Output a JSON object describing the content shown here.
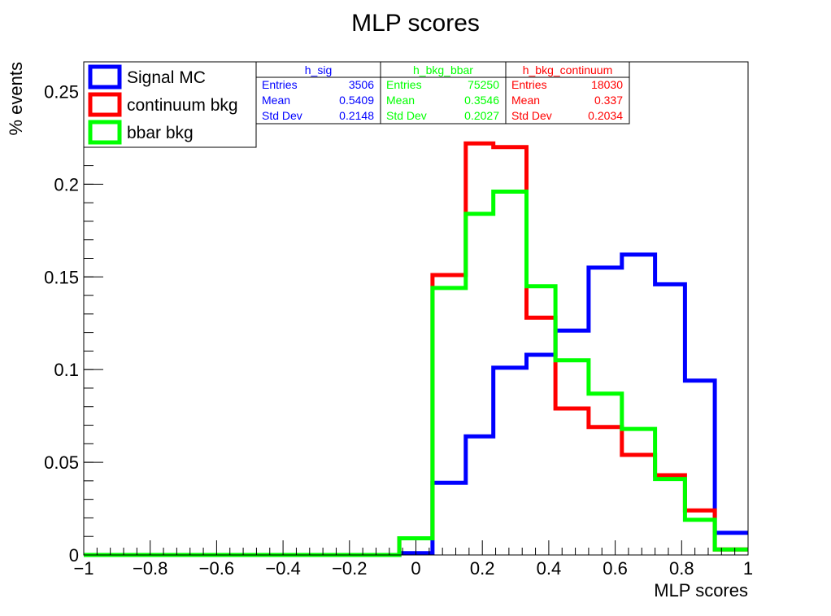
{
  "chart_data": {
    "type": "histogram",
    "title": "MLP scores",
    "xlabel": "MLP scores",
    "ylabel": "% events",
    "xlim": [
      -1,
      1
    ],
    "ylim": [
      0,
      0.266
    ],
    "x_ticks": [
      -1,
      -0.8,
      -0.6,
      -0.4,
      -0.2,
      0,
      0.2,
      0.4,
      0.6,
      0.8,
      1
    ],
    "x_tick_labels": [
      "−1",
      "−0.8",
      "−0.6",
      "−0.4",
      "−0.2",
      "0",
      "0.2",
      "0.4",
      "0.6",
      "0.8",
      "1"
    ],
    "y_ticks": [
      0,
      0.05,
      0.1,
      0.15,
      0.2,
      0.25
    ],
    "y_tick_labels": [
      "0",
      "0.05",
      "0.1",
      "0.15",
      "0.2",
      "0.25"
    ],
    "bin_edges": [
      -1,
      -0.9,
      -0.8,
      -0.7,
      -0.6,
      -0.5,
      -0.4,
      -0.3,
      -0.2,
      -0.1,
      0,
      0.1,
      0.2,
      0.3,
      0.4,
      0.5,
      0.6,
      0.7,
      0.8,
      0.9,
      1
    ],
    "series": [
      {
        "name": "Signal MC",
        "color": "#0000ff",
        "edges": [
          -1,
          -0.05,
          0.05,
          0.15,
          0.233,
          0.333,
          0.42,
          0.52,
          0.62,
          0.72,
          0.81,
          0.9,
          1
        ],
        "values": [
          0,
          0.001,
          0.039,
          0.064,
          0.101,
          0.108,
          0.121,
          0.155,
          0.162,
          0.146,
          0.094,
          0.012
        ]
      },
      {
        "name": "continuum bkg",
        "color": "#ff0000",
        "edges": [
          -1,
          -0.05,
          0.05,
          0.15,
          0.233,
          0.333,
          0.42,
          0.52,
          0.62,
          0.72,
          0.81,
          0.9,
          1
        ],
        "values": [
          0,
          0.009,
          0.151,
          0.222,
          0.22,
          0.128,
          0.079,
          0.069,
          0.054,
          0.043,
          0.024,
          0.003
        ]
      },
      {
        "name": "bbar bkg",
        "color": "#00ff00",
        "edges": [
          -1,
          -0.05,
          0.05,
          0.15,
          0.233,
          0.333,
          0.42,
          0.52,
          0.62,
          0.72,
          0.81,
          0.9,
          1
        ],
        "values": [
          0,
          0.009,
          0.144,
          0.184,
          0.196,
          0.145,
          0.105,
          0.087,
          0.068,
          0.041,
          0.019,
          0.003
        ]
      }
    ],
    "legend": {
      "placement": "top-left",
      "entries": [
        {
          "label": "Signal MC",
          "color": "#0000ff"
        },
        {
          "label": "continuum bkg",
          "color": "#ff0000"
        },
        {
          "label": "bbar bkg",
          "color": "#00ff00"
        }
      ]
    },
    "stat_boxes": [
      {
        "name": "h_sig",
        "color": "#0000ff",
        "entries_label": "Entries",
        "entries": "3506",
        "mean_label": "Mean",
        "mean": "0.5409",
        "std_label": "Std Dev",
        "std": "0.2148"
      },
      {
        "name": "h_bkg_bbar",
        "color": "#00ff00",
        "entries_label": "Entries",
        "entries": "75250",
        "mean_label": "Mean",
        "mean": "0.3546",
        "std_label": "Std Dev",
        "std": "0.2027"
      },
      {
        "name": "h_bkg_continuum",
        "color": "#ff0000",
        "entries_label": "Entries",
        "entries": "18030",
        "mean_label": "Mean",
        "mean": "0.337",
        "std_label": "Std Dev",
        "std": "0.2034"
      }
    ]
  }
}
